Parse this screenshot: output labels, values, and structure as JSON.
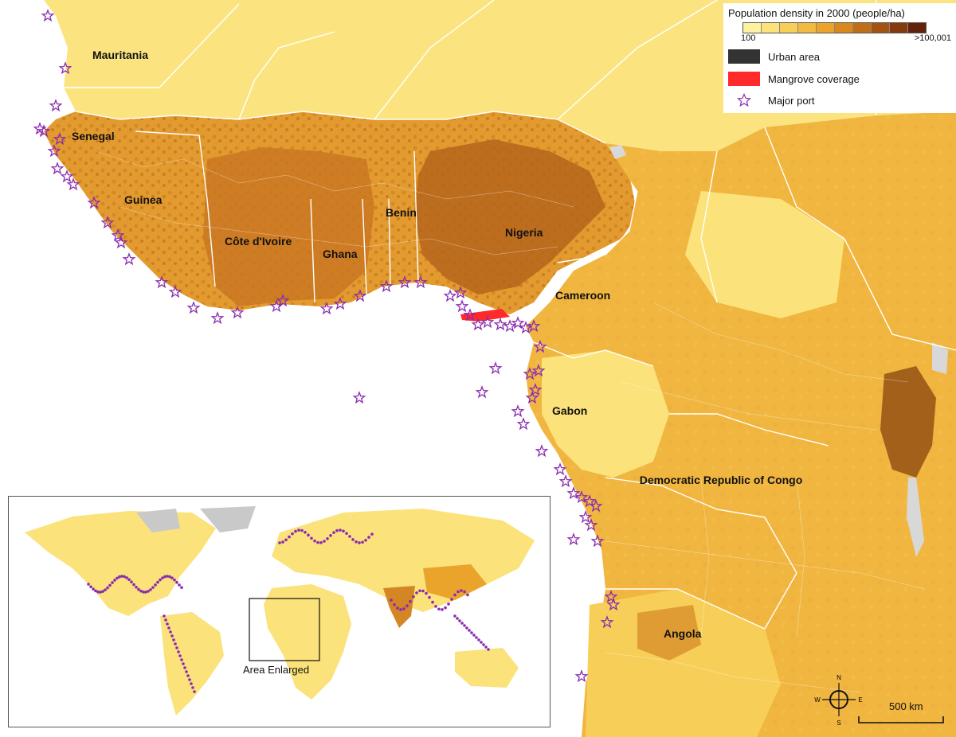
{
  "legend": {
    "title": "Population density in 2000 (people/ha)",
    "min_label": "100",
    "max_label": ">100,001",
    "ramp_colors": [
      "#fdf2a0",
      "#fbe27a",
      "#f7cf58",
      "#f2ba3e",
      "#eaa42c",
      "#d9881e",
      "#c06d17",
      "#a35212",
      "#843a0e",
      "#62210a"
    ],
    "urban_label": "Urban area",
    "urban_color": "#333333",
    "mangrove_label": "Mangrove coverage",
    "mangrove_color": "#ff2a2a",
    "port_label": "Major port",
    "port_icon": "star-outline-icon",
    "port_color": "#8a2ab0"
  },
  "countries": [
    {
      "id": "mauritania",
      "label": "Mauritania"
    },
    {
      "id": "senegal",
      "label": "Senegal"
    },
    {
      "id": "guinea",
      "label": "Guinea"
    },
    {
      "id": "cote-divoire",
      "label": "Côte d'Ivoire"
    },
    {
      "id": "ghana",
      "label": "Ghana"
    },
    {
      "id": "benin",
      "label": "Benin"
    },
    {
      "id": "nigeria",
      "label": "Nigeria"
    },
    {
      "id": "cameroon",
      "label": "Cameroon"
    },
    {
      "id": "gabon",
      "label": "Gabon"
    },
    {
      "id": "drc",
      "label": "Democratic Republic of Congo"
    },
    {
      "id": "angola",
      "label": "Angola"
    }
  ],
  "inset": {
    "label": "Area Enlarged"
  },
  "scale": {
    "label": "500 km"
  },
  "compass": {
    "icon": "compass-rose-icon",
    "north": "N",
    "south": "S",
    "east": "E",
    "west": "W"
  },
  "colors": {
    "ocean": "#ffffff",
    "land_light": "#fbe480",
    "land_mid": "#f0b640",
    "land_dark": "#cf7f22",
    "land_darker": "#a85a16",
    "borders": "#ffffff",
    "lakes": "#d8d8d8",
    "ice": "#c9c9c9"
  }
}
